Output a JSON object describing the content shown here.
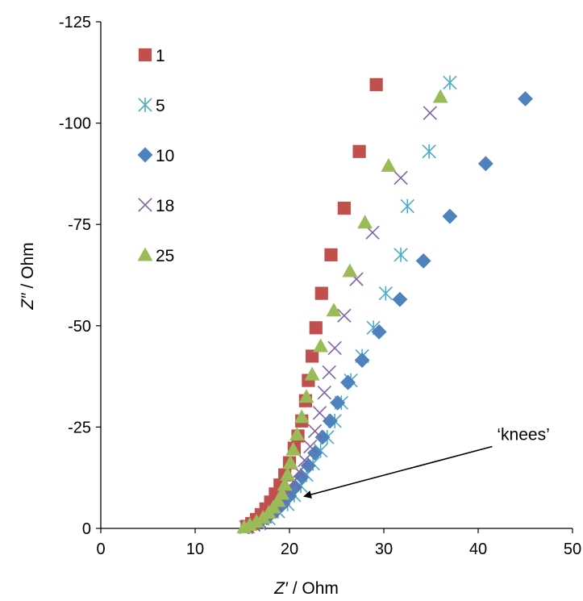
{
  "chart_data": {
    "type": "scatter",
    "title": "",
    "xlabel": {
      "italic": "Z′",
      "plain": " / Ohm"
    },
    "ylabel": {
      "italic": "Z″",
      "plain": " / Ohm"
    },
    "xlim": [
      0,
      50
    ],
    "ylim": [
      0,
      -125
    ],
    "xticks": [
      0,
      10,
      20,
      30,
      40,
      50
    ],
    "yticks": [
      0,
      -25,
      -50,
      -75,
      -100,
      -125
    ],
    "grid": false,
    "legend_placement": "top-left",
    "annotation": {
      "text": "‘knees’",
      "target": [
        21.2,
        -7.5
      ],
      "text_at": [
        42,
        -21
      ]
    },
    "series": [
      {
        "name": "1",
        "marker": "square",
        "color": "#C0504D",
        "points": [
          [
            15.5,
            -0.5
          ],
          [
            16.0,
            -1.2
          ],
          [
            16.5,
            -2.2
          ],
          [
            17.0,
            -3.4
          ],
          [
            17.5,
            -4.8
          ],
          [
            18.0,
            -6.5
          ],
          [
            18.5,
            -8.5
          ],
          [
            19.0,
            -10.7
          ],
          [
            19.5,
            -13.2
          ],
          [
            20.0,
            -16.2
          ],
          [
            20.5,
            -19.8
          ],
          [
            20.9,
            -22.8
          ],
          [
            21.3,
            -26.5
          ],
          [
            21.7,
            -31.5
          ],
          [
            22.0,
            -36.5
          ],
          [
            22.4,
            -42.5
          ],
          [
            22.8,
            -49.5
          ],
          [
            23.4,
            -58.0
          ],
          [
            24.4,
            -67.5
          ],
          [
            25.8,
            -79.0
          ],
          [
            27.4,
            -93.0
          ],
          [
            29.2,
            -109.5
          ]
        ]
      },
      {
        "name": "5",
        "marker": "asterisk",
        "color": "#4BACC6",
        "points": [
          [
            15.6,
            -0.4
          ],
          [
            16.8,
            -1.2
          ],
          [
            17.8,
            -2.5
          ],
          [
            18.8,
            -4.2
          ],
          [
            19.8,
            -6.0
          ],
          [
            20.5,
            -8.2
          ],
          [
            21.2,
            -10.5
          ],
          [
            21.8,
            -13.2
          ],
          [
            22.5,
            -16.0
          ],
          [
            23.3,
            -19.2
          ],
          [
            24.0,
            -22.5
          ],
          [
            24.8,
            -26.5
          ],
          [
            25.5,
            -31.0
          ],
          [
            26.5,
            -36.5
          ],
          [
            27.7,
            -42.5
          ],
          [
            28.9,
            -49.5
          ],
          [
            30.2,
            -58.0
          ],
          [
            31.8,
            -67.5
          ],
          [
            32.5,
            -79.5
          ],
          [
            34.8,
            -93.0
          ],
          [
            37.0,
            -110.0
          ]
        ]
      },
      {
        "name": "10",
        "marker": "diamond",
        "color": "#4F81BD",
        "points": [
          [
            15.7,
            -0.4
          ],
          [
            16.7,
            -1.3
          ],
          [
            17.6,
            -2.6
          ],
          [
            18.5,
            -4.2
          ],
          [
            19.3,
            -6.0
          ],
          [
            20.0,
            -8.0
          ],
          [
            20.6,
            -10.2
          ],
          [
            21.3,
            -12.7
          ],
          [
            22.0,
            -15.5
          ],
          [
            22.7,
            -18.6
          ],
          [
            23.5,
            -22.5
          ],
          [
            24.3,
            -26.5
          ],
          [
            25.1,
            -31.0
          ],
          [
            26.2,
            -36.0
          ],
          [
            27.7,
            -41.5
          ],
          [
            29.5,
            -48.5
          ],
          [
            31.7,
            -56.5
          ],
          [
            34.2,
            -66.0
          ],
          [
            37.0,
            -77.0
          ],
          [
            40.8,
            -90.0
          ],
          [
            45.0,
            -106.0
          ]
        ]
      },
      {
        "name": "18",
        "marker": "x",
        "color": "#8064A2",
        "points": [
          [
            15.4,
            -0.3
          ],
          [
            16.2,
            -0.9
          ],
          [
            16.8,
            -1.8
          ],
          [
            17.4,
            -2.9
          ],
          [
            18.0,
            -4.2
          ],
          [
            18.6,
            -5.7
          ],
          [
            19.2,
            -7.4
          ],
          [
            19.8,
            -9.3
          ],
          [
            20.4,
            -11.5
          ],
          [
            21.0,
            -14.0
          ],
          [
            21.6,
            -16.8
          ],
          [
            22.2,
            -20.2
          ],
          [
            22.7,
            -24.0
          ],
          [
            23.2,
            -28.5
          ],
          [
            23.7,
            -33.5
          ],
          [
            24.2,
            -38.5
          ],
          [
            24.8,
            -44.5
          ],
          [
            25.8,
            -52.5
          ],
          [
            27.1,
            -61.5
          ],
          [
            28.8,
            -73.0
          ],
          [
            31.8,
            -86.5
          ],
          [
            34.9,
            -102.5
          ]
        ]
      },
      {
        "name": "25",
        "marker": "triangle",
        "color": "#9BBB59",
        "points": [
          [
            15.2,
            -0.3
          ],
          [
            15.8,
            -0.9
          ],
          [
            16.5,
            -1.7
          ],
          [
            17.2,
            -2.7
          ],
          [
            17.8,
            -3.9
          ],
          [
            18.3,
            -5.2
          ],
          [
            18.8,
            -6.8
          ],
          [
            19.2,
            -8.6
          ],
          [
            19.5,
            -10.8
          ],
          [
            19.8,
            -13.3
          ],
          [
            20.1,
            -16.2
          ],
          [
            20.4,
            -19.5
          ],
          [
            20.8,
            -23.2
          ],
          [
            21.3,
            -27.5
          ],
          [
            21.8,
            -32.5
          ],
          [
            22.4,
            -38.0
          ],
          [
            23.3,
            -45.0
          ],
          [
            24.7,
            -53.8
          ],
          [
            26.4,
            -63.5
          ],
          [
            28.0,
            -75.5
          ],
          [
            30.5,
            -89.5
          ],
          [
            36.0,
            -106.5
          ]
        ]
      }
    ]
  }
}
